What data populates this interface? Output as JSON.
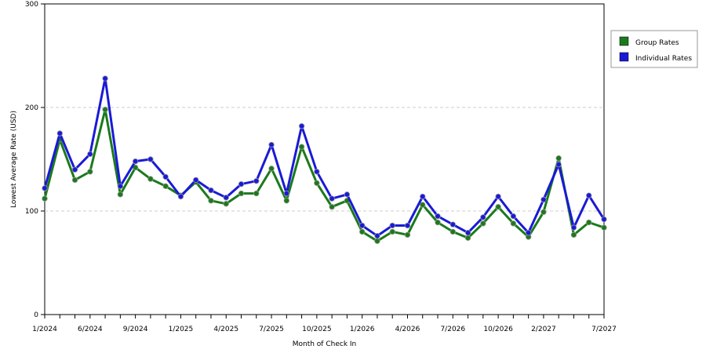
{
  "chart_data": {
    "type": "line",
    "title": "",
    "xlabel": "Month of Check In",
    "ylabel": "Lowest Average Rate (USD)",
    "ylim": [
      0,
      300
    ],
    "y_ticks": [
      "0",
      "100",
      "200",
      "300"
    ],
    "grid": "horizontal dashed",
    "legend_position": "top-right",
    "x_tick_labels": [
      {
        "index": 0,
        "label": "1/2024"
      },
      {
        "index": 3,
        "label": "6/2024"
      },
      {
        "index": 6,
        "label": "9/2024"
      },
      {
        "index": 9,
        "label": "1/2025"
      },
      {
        "index": 12,
        "label": "4/2025"
      },
      {
        "index": 15,
        "label": "7/2025"
      },
      {
        "index": 18,
        "label": "10/2025"
      },
      {
        "index": 21,
        "label": "1/2026"
      },
      {
        "index": 24,
        "label": "4/2026"
      },
      {
        "index": 27,
        "label": "7/2026"
      },
      {
        "index": 30,
        "label": "10/2026"
      },
      {
        "index": 33,
        "label": "2/2027"
      },
      {
        "index": 37,
        "label": "7/2027"
      }
    ],
    "series": [
      {
        "name": "Group Rates",
        "color": "#1b7a1b",
        "values": [
          112,
          169,
          130,
          138,
          198,
          116,
          142,
          131,
          124,
          115,
          128,
          110,
          107,
          117,
          117,
          141,
          110,
          162,
          127,
          104,
          110,
          80,
          71,
          80,
          77,
          106,
          89,
          80,
          74,
          88,
          104,
          88,
          75,
          99,
          151,
          77,
          89,
          84
        ]
      },
      {
        "name": "Individual Rates",
        "color": "#1a1ad6",
        "values": [
          122,
          175,
          140,
          155,
          228,
          124,
          148,
          150,
          133,
          114,
          130,
          120,
          113,
          126,
          129,
          164,
          117,
          182,
          138,
          112,
          116,
          86,
          76,
          86,
          86,
          114,
          95,
          87,
          79,
          94,
          114,
          95,
          79,
          111,
          145,
          84,
          115,
          92
        ]
      }
    ]
  }
}
